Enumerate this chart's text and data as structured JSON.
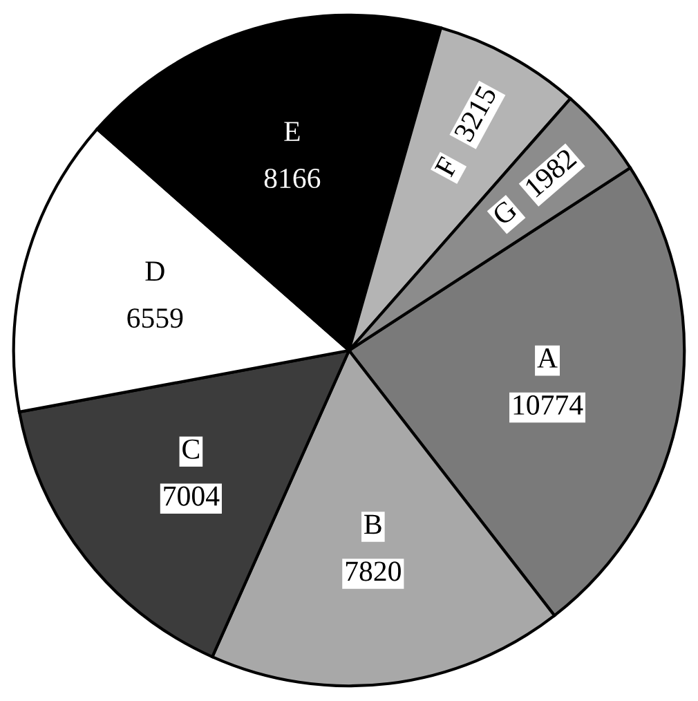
{
  "chart_data": {
    "type": "pie",
    "categories": [
      "A",
      "B",
      "C",
      "D",
      "E",
      "F",
      "G"
    ],
    "values": [
      10774,
      7820,
      7004,
      6559,
      8166,
      3215,
      1982
    ],
    "colors": [
      "#7a7a7a",
      "#a8a8a8",
      "#3c3c3c",
      "#ffffff",
      "#000000",
      "#b4b4b4",
      "#8c8c8c"
    ],
    "data_labels": true,
    "legend": false
  }
}
